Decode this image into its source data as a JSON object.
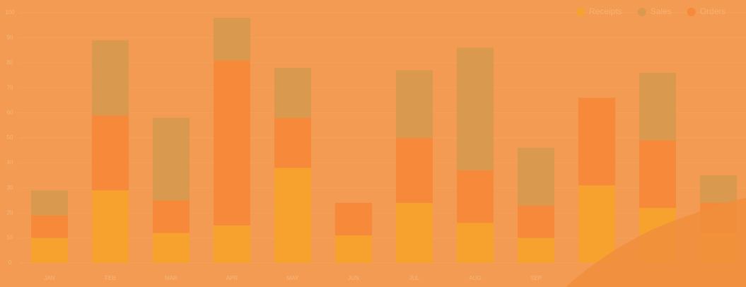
{
  "chart_data": {
    "type": "bar",
    "stacked": true,
    "categories": [
      "JAN",
      "FEB",
      "MAR",
      "APR",
      "MAY",
      "JUN",
      "JUL",
      "AUG",
      "SEP",
      null,
      null,
      null
    ],
    "series": [
      {
        "name": "Receipts",
        "color": "#f7a12f",
        "values": [
          10,
          29,
          12,
          15,
          38,
          11,
          24,
          16,
          10,
          31,
          22,
          12
        ]
      },
      {
        "name": "Sales",
        "color": "#d99a4f",
        "values": [
          10,
          30,
          33,
          17,
          20,
          0,
          27,
          49,
          23,
          0,
          27,
          11
        ]
      },
      {
        "name": "Orders",
        "color": "#f68a3a",
        "values": [
          9,
          30,
          13,
          66,
          20,
          13,
          26,
          21,
          13,
          35,
          27,
          12
        ]
      }
    ],
    "ylim": [
      0,
      100
    ],
    "yticks": [
      0,
      10,
      20,
      30,
      40,
      50,
      60,
      70,
      80,
      90,
      100
    ],
    "grid": true,
    "legend": "top-right"
  }
}
